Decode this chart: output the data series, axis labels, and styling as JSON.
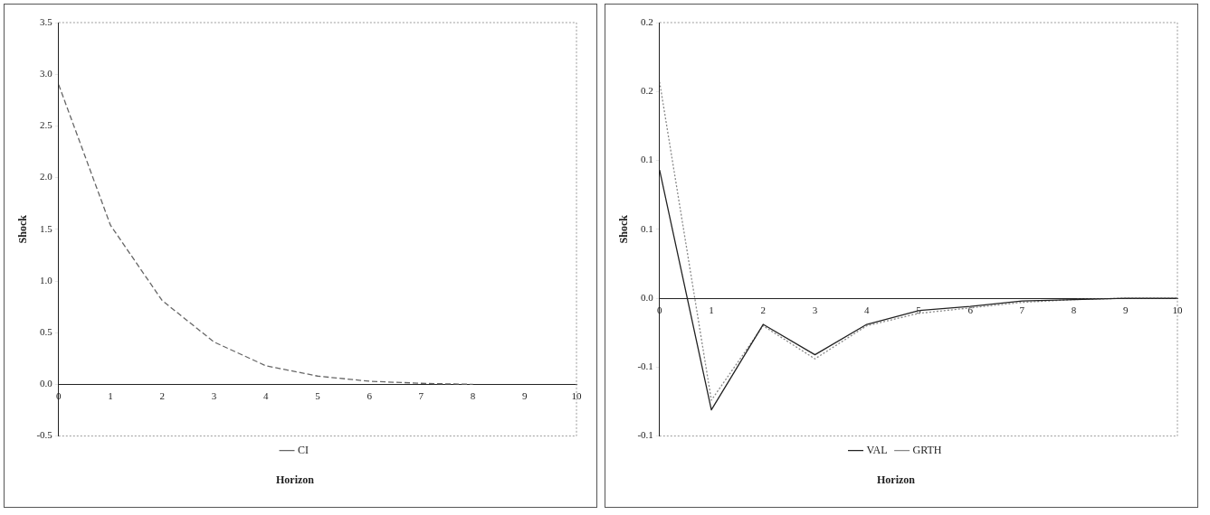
{
  "chart_data": [
    {
      "type": "line",
      "xlabel": "Horizon",
      "ylabel": "Shock",
      "x": [
        0,
        1,
        2,
        3,
        4,
        5,
        6,
        7,
        8
      ],
      "series": [
        {
          "name": "CI",
          "color": "#666666",
          "line_style": "dashed",
          "values": [
            2.9,
            1.54,
            0.81,
            0.41,
            0.18,
            0.08,
            0.03,
            0.01,
            0
          ]
        }
      ],
      "xlim": [
        0,
        10
      ],
      "xticks": [
        0,
        1,
        2,
        3,
        4,
        5,
        6,
        7,
        8,
        9,
        10
      ],
      "ylim": [
        -0.5,
        3.5
      ],
      "yticks": [
        {
          "value": -0.5,
          "label": "-0.5"
        },
        {
          "value": 0,
          "label": "0.0"
        },
        {
          "value": 0.5,
          "label": "0.5"
        },
        {
          "value": 1,
          "label": "1.0"
        },
        {
          "value": 1.5,
          "label": "1.5"
        },
        {
          "value": 2,
          "label": "2.0"
        },
        {
          "value": 2.5,
          "label": "2.5"
        },
        {
          "value": 3,
          "label": "3.0"
        },
        {
          "value": 3.5,
          "label": "3.5"
        }
      ],
      "grid": false,
      "legend": "bottom",
      "marker": "none"
    },
    {
      "type": "line",
      "xlabel": "Horizon",
      "ylabel": "Shock",
      "x": [
        0,
        1,
        2,
        3,
        4,
        5,
        6,
        7,
        8,
        9,
        10
      ],
      "series": [
        {
          "name": "VAL",
          "color": "#222222",
          "line_style": "solid",
          "values": [
            0.093,
            -0.081,
            -0.019,
            -0.041,
            -0.019,
            -0.009,
            -0.006,
            -0.002,
            -0.001,
            0,
            0
          ]
        },
        {
          "name": "GRTH",
          "color": "#888888",
          "line_style": "dotted",
          "values": [
            0.157,
            -0.074,
            -0.02,
            -0.044,
            -0.02,
            -0.011,
            -0.007,
            -0.003,
            -0.001,
            0,
            0
          ]
        }
      ],
      "xlim": [
        0,
        10
      ],
      "xticks": [
        0,
        1,
        2,
        3,
        4,
        5,
        6,
        7,
        8,
        9,
        10
      ],
      "ylim": [
        -0.1,
        0.2
      ],
      "yticks": [
        {
          "value": -0.1,
          "label": "-0.1"
        },
        {
          "value": -0.05,
          "label": "-0.1"
        },
        {
          "value": 0,
          "label": "0.0"
        },
        {
          "value": 0.05,
          "label": "0.1"
        },
        {
          "value": 0.1,
          "label": "0.1"
        },
        {
          "value": 0.15,
          "label": "0.2"
        },
        {
          "value": 0.2,
          "label": "0.2"
        }
      ],
      "grid": false,
      "legend": "bottom",
      "marker": "none"
    }
  ]
}
